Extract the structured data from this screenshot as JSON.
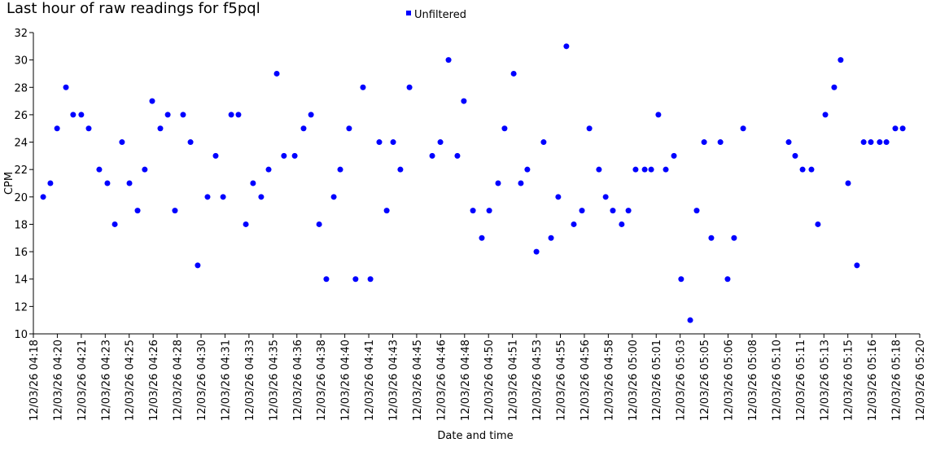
{
  "chart_data": {
    "type": "scatter",
    "title": "Last hour of raw readings for f5pql",
    "xlabel": "Date and time",
    "ylabel": "CPM",
    "legend": "top",
    "series": [
      {
        "name": "Unfiltered",
        "color": "#0000ff",
        "x": [
          "12/03/26 04:19:01",
          "12/03/26 04:19:31",
          "12/03/26 04:19:59",
          "12/03/26 04:20:36",
          "12/03/26 04:21:06",
          "12/03/26 04:21:40",
          "12/03/26 04:22:11",
          "12/03/26 04:22:55",
          "12/03/26 04:23:29",
          "12/03/26 04:24:00",
          "12/03/26 04:24:30",
          "12/03/26 04:25:01",
          "12/03/26 04:25:35",
          "12/03/26 04:26:05",
          "12/03/26 04:26:36",
          "12/03/26 04:27:10",
          "12/03/26 04:27:41",
          "12/03/26 04:28:11",
          "12/03/26 04:28:45",
          "12/03/26 04:29:16",
          "12/03/26 04:29:46",
          "12/03/26 04:30:27",
          "12/03/26 04:31:01",
          "12/03/26 04:31:32",
          "12/03/26 04:32:06",
          "12/03/26 04:32:36",
          "12/03/26 04:33:07",
          "12/03/26 04:33:37",
          "12/03/26 04:34:11",
          "12/03/26 04:34:42",
          "12/03/26 04:35:16",
          "12/03/26 04:35:46",
          "12/03/26 04:36:31",
          "12/03/26 04:37:08",
          "12/03/26 04:37:39",
          "12/03/26 04:38:13",
          "12/03/26 04:38:43",
          "12/03/26 04:39:14",
          "12/03/26 04:39:41",
          "12/03/26 04:40:18",
          "12/03/26 04:40:45",
          "12/03/26 04:41:16",
          "12/03/26 04:41:47",
          "12/03/26 04:42:24",
          "12/03/26 04:42:55",
          "12/03/26 04:43:22",
          "12/03/26 04:43:52",
          "12/03/26 04:44:30",
          "12/03/26 04:46:05",
          "12/03/26 04:46:39",
          "12/03/26 04:47:13",
          "12/03/26 04:47:50",
          "12/03/26 04:48:17",
          "12/03/26 04:48:55",
          "12/03/26 04:49:32",
          "12/03/26 04:50:03",
          "12/03/26 04:50:40",
          "12/03/26 04:51:07",
          "12/03/26 04:51:45",
          "12/03/26 04:52:15",
          "12/03/26 04:52:42",
          "12/03/26 04:53:20",
          "12/03/26 04:53:50",
          "12/03/26 04:54:21",
          "12/03/26 04:54:51",
          "12/03/26 04:55:25",
          "12/03/26 04:55:56",
          "12/03/26 04:56:30",
          "12/03/26 04:57:01",
          "12/03/26 04:57:41",
          "12/03/26 04:58:09",
          "12/03/26 04:58:39",
          "12/03/26 04:59:16",
          "12/03/26 04:59:44",
          "12/03/26 05:00:14",
          "12/03/26 05:00:52",
          "12/03/26 05:01:19",
          "12/03/26 05:01:49",
          "12/03/26 05:02:20",
          "12/03/26 05:02:54",
          "12/03/26 05:03:24",
          "12/03/26 05:04:02",
          "12/03/26 05:04:29",
          "12/03/26 05:05:00",
          "12/03/26 05:05:30",
          "12/03/26 05:06:08",
          "12/03/26 05:06:38",
          "12/03/26 05:07:05",
          "12/03/26 05:07:43",
          "12/03/26 05:10:53",
          "12/03/26 05:11:20",
          "12/03/26 05:11:51",
          "12/03/26 05:12:28",
          "12/03/26 05:12:55",
          "12/03/26 05:13:26",
          "12/03/26 05:14:03",
          "12/03/26 05:14:30",
          "12/03/26 05:15:01",
          "12/03/26 05:15:38",
          "12/03/26 05:16:06",
          "12/03/26 05:16:36",
          "12/03/26 05:17:13",
          "12/03/26 05:17:41",
          "12/03/26 05:18:18",
          "12/03/26 05:18:49"
        ],
        "values": [
          20,
          21,
          25,
          28,
          26,
          26,
          25,
          22,
          21,
          18,
          24,
          21,
          19,
          22,
          27,
          25,
          26,
          19,
          26,
          24,
          15,
          20,
          23,
          20,
          26,
          26,
          18,
          21,
          20,
          22,
          29,
          23,
          23,
          25,
          26,
          18,
          14,
          20,
          22,
          25,
          14,
          28,
          14,
          24,
          19,
          24,
          22,
          28,
          23,
          24,
          30,
          23,
          27,
          19,
          17,
          19,
          21,
          25,
          29,
          21,
          22,
          16,
          24,
          17,
          20,
          31,
          18,
          19,
          25,
          22,
          20,
          19,
          18,
          19,
          22,
          22,
          22,
          26,
          22,
          23,
          14,
          11,
          19,
          24,
          17,
          24,
          14,
          17,
          25,
          24,
          23,
          22,
          22,
          18,
          26,
          28,
          30,
          21,
          15,
          24,
          24,
          24,
          24,
          25,
          25
        ]
      }
    ],
    "xlim": [
      "12/03/26 04:18:20",
      "12/03/26 05:20:00"
    ],
    "xticks": [
      {
        "value": "12/03/26 04:18:20",
        "label": "12/03/26 04:18"
      },
      {
        "value": "12/03/26 04:20:00",
        "label": "12/03/26 04:20"
      },
      {
        "value": "12/03/26 04:21:40",
        "label": "12/03/26 04:21"
      },
      {
        "value": "12/03/26 04:23:20",
        "label": "12/03/26 04:23"
      },
      {
        "value": "12/03/26 04:25:00",
        "label": "12/03/26 04:25"
      },
      {
        "value": "12/03/26 04:26:40",
        "label": "12/03/26 04:26"
      },
      {
        "value": "12/03/26 04:28:20",
        "label": "12/03/26 04:28"
      },
      {
        "value": "12/03/26 04:30:00",
        "label": "12/03/26 04:30"
      },
      {
        "value": "12/03/26 04:31:40",
        "label": "12/03/26 04:31"
      },
      {
        "value": "12/03/26 04:33:20",
        "label": "12/03/26 04:33"
      },
      {
        "value": "12/03/26 04:35:00",
        "label": "12/03/26 04:35"
      },
      {
        "value": "12/03/26 04:36:40",
        "label": "12/03/26 04:36"
      },
      {
        "value": "12/03/26 04:38:20",
        "label": "12/03/26 04:38"
      },
      {
        "value": "12/03/26 04:40:00",
        "label": "12/03/26 04:40"
      },
      {
        "value": "12/03/26 04:41:40",
        "label": "12/03/26 04:41"
      },
      {
        "value": "12/03/26 04:43:20",
        "label": "12/03/26 04:43"
      },
      {
        "value": "12/03/26 04:45:00",
        "label": "12/03/26 04:45"
      },
      {
        "value": "12/03/26 04:46:40",
        "label": "12/03/26 04:46"
      },
      {
        "value": "12/03/26 04:48:20",
        "label": "12/03/26 04:48"
      },
      {
        "value": "12/03/26 04:50:00",
        "label": "12/03/26 04:50"
      },
      {
        "value": "12/03/26 04:51:40",
        "label": "12/03/26 04:51"
      },
      {
        "value": "12/03/26 04:53:20",
        "label": "12/03/26 04:53"
      },
      {
        "value": "12/03/26 04:55:00",
        "label": "12/03/26 04:55"
      },
      {
        "value": "12/03/26 04:56:40",
        "label": "12/03/26 04:56"
      },
      {
        "value": "12/03/26 04:58:20",
        "label": "12/03/26 04:58"
      },
      {
        "value": "12/03/26 05:00:00",
        "label": "12/03/26 05:00"
      },
      {
        "value": "12/03/26 05:01:40",
        "label": "12/03/26 05:01"
      },
      {
        "value": "12/03/26 05:03:20",
        "label": "12/03/26 05:03"
      },
      {
        "value": "12/03/26 05:05:00",
        "label": "12/03/26 05:05"
      },
      {
        "value": "12/03/26 05:06:40",
        "label": "12/03/26 05:06"
      },
      {
        "value": "12/03/26 05:08:20",
        "label": "12/03/26 05:08"
      },
      {
        "value": "12/03/26 05:10:00",
        "label": "12/03/26 05:10"
      },
      {
        "value": "12/03/26 05:11:40",
        "label": "12/03/26 05:11"
      },
      {
        "value": "12/03/26 05:13:20",
        "label": "12/03/26 05:13"
      },
      {
        "value": "12/03/26 05:15:00",
        "label": "12/03/26 05:15"
      },
      {
        "value": "12/03/26 05:16:40",
        "label": "12/03/26 05:16"
      },
      {
        "value": "12/03/26 05:18:20",
        "label": "12/03/26 05:18"
      },
      {
        "value": "12/03/26 05:20:00",
        "label": "12/03/26 05:20"
      }
    ],
    "ylim": [
      10,
      32
    ],
    "yticks": [
      10,
      12,
      14,
      16,
      18,
      20,
      22,
      24,
      26,
      28,
      30,
      32
    ],
    "grid": false
  }
}
